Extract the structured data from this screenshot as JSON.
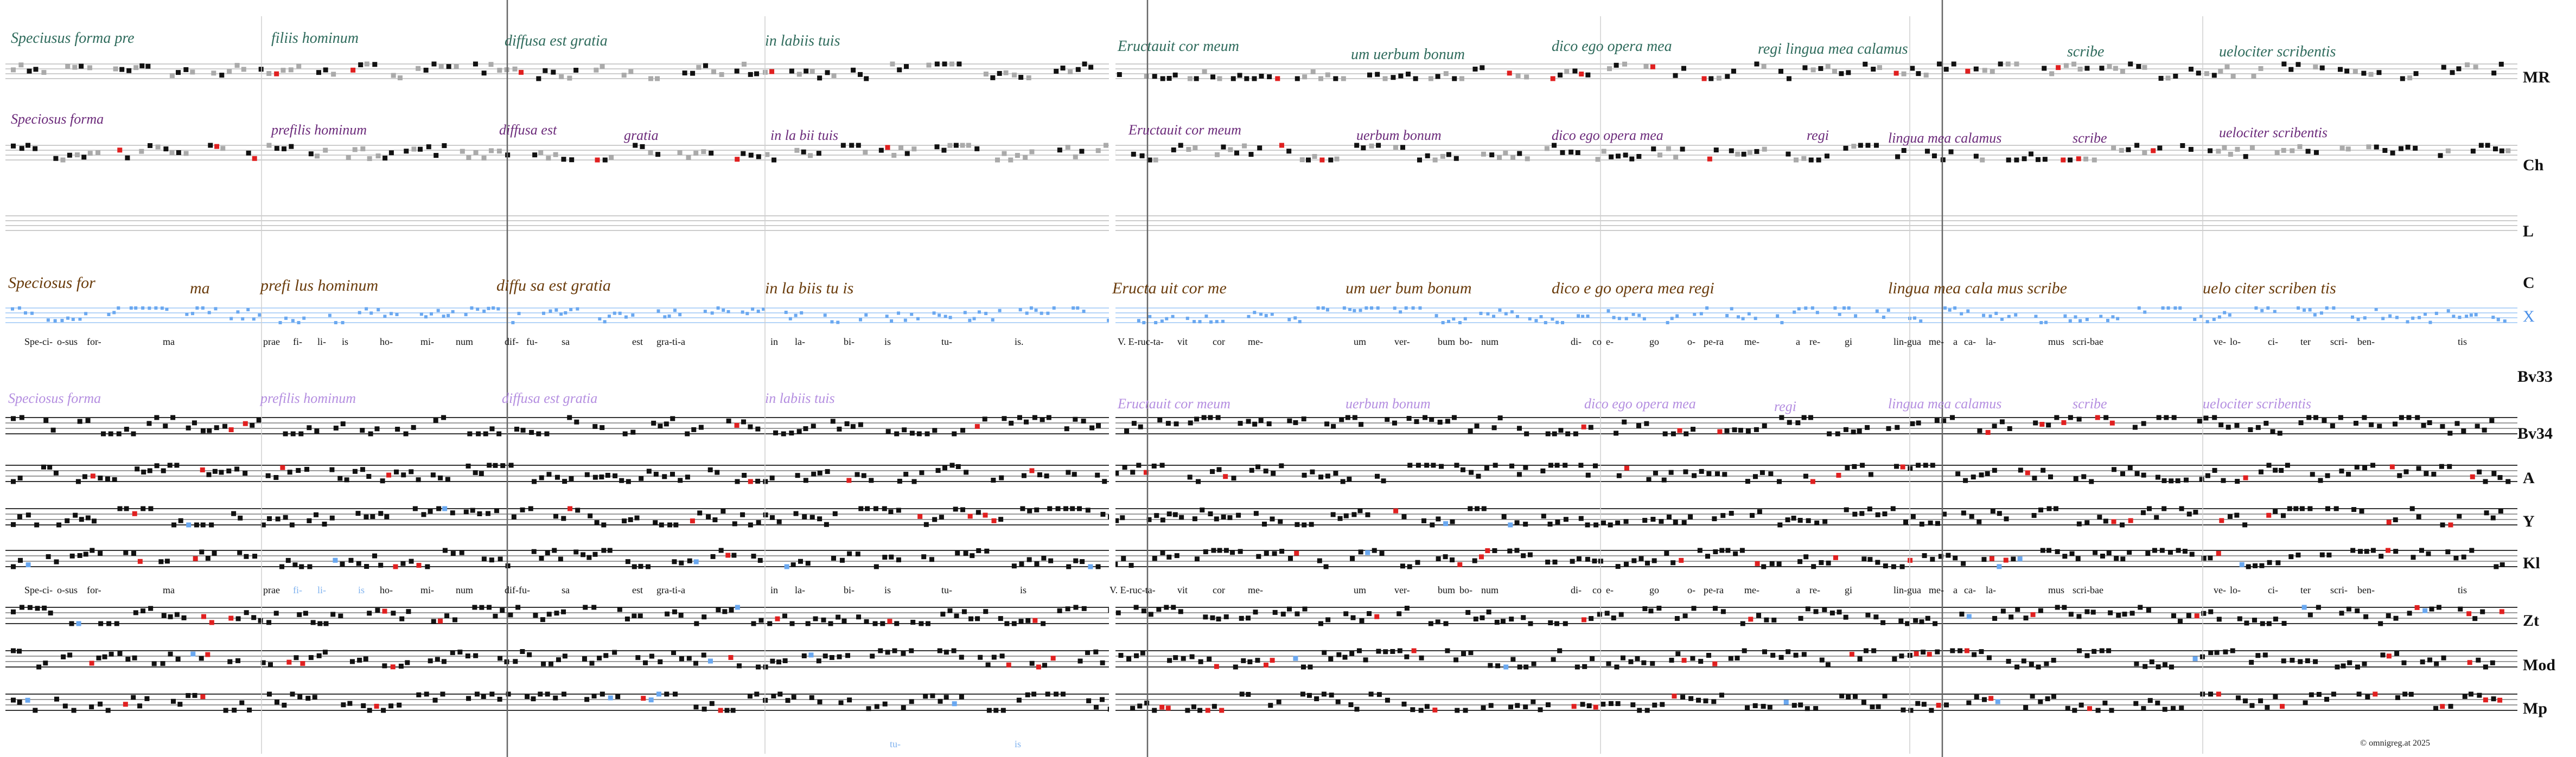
{
  "row_labels": [
    "MR",
    "Ch",
    "L",
    "C",
    "X",
    "Bv33",
    "Bv34",
    "A",
    "Y",
    "Kl",
    "Zt",
    "Mod",
    "Mp"
  ],
  "neume_text": {
    "MR": [
      "Speciusus forma pre",
      "filiis hominum",
      "diffusa est gratia",
      "in labiis tuis",
      "Eructauit cor meum",
      "um uerbum bonum",
      "dico ego opera mea",
      "regi lingua mea calamus",
      "scribe",
      "uelociter scribentis"
    ],
    "Ch": [
      "Speciosus forma",
      "prefilis hominum",
      "diffusa est",
      "gratia",
      "in la bii tuis",
      "Eructauit cor meum",
      "uerbum bonum",
      "dico ego opera mea",
      "regi",
      "lingua mea calamus",
      "scribe",
      "uelociter scribentis"
    ],
    "C": [
      "Speciosus for",
      "ma",
      "prefi lus hominum",
      "diffu sa est gratia",
      "in la biis tu is",
      "Eructa uit cor me",
      "um uer bum bonum",
      "dico e go opera mea regi",
      "lingua mea cala mus scribe",
      "uelo citer scriben tis"
    ],
    "Bv33": [
      "Speciosus forma",
      "prefilis hominum",
      "diffusa est gratia",
      "in labiis tuis",
      "Eructauit cor meum",
      "uerbum bonum",
      "dico ego opera mea",
      "regi",
      "lingua mea calamus",
      "scribe",
      "uelociter scribentis"
    ]
  },
  "lyrics": {
    "X": [
      "Spe-ci-",
      "o-sus",
      "for-",
      "ma",
      "prae",
      "fi-",
      "li-",
      "is",
      "ho-",
      "mi-",
      "num",
      "dif-",
      "fu-",
      "sa",
      "est",
      "gra-ti-a",
      "in",
      "la-",
      "bi-",
      "is",
      "tu-",
      "is.",
      "V. E-ruc-ta-",
      "vit",
      "cor",
      "me-",
      "um",
      "ver-",
      "bum",
      "bo-",
      "num",
      "di-",
      "co",
      "e-",
      "go",
      "o-",
      "pe-ra",
      "me-",
      "a",
      "re-",
      "gi",
      "lin-gua",
      "me-",
      "a",
      "ca-",
      "la-",
      "mus",
      "scri-bae",
      "ve-",
      "lo-",
      "ci-",
      "ter",
      "scri-",
      "ben-",
      "tis"
    ],
    "Kl": [
      "Spe-ci-",
      "o-sus",
      "for-",
      "ma",
      "prae",
      "fi-",
      "li-",
      "is",
      "ho-",
      "mi-",
      "num",
      "dif-fu-",
      "sa",
      "est",
      "gra-ti-a",
      "in",
      "la-",
      "bi-",
      "is",
      "tu-",
      "is",
      "V. E-ruc-ta-",
      "vit",
      "cor",
      "me-",
      "um",
      "ver-",
      "bum",
      "bo-",
      "num",
      "di-",
      "co",
      "e-",
      "go",
      "o-",
      "pe-ra",
      "me-",
      "a",
      "re-",
      "gi",
      "lin-gua",
      "me-",
      "a",
      "ca-",
      "la-",
      "mus",
      "scri-bae",
      "ve-",
      "lo-",
      "ci-",
      "ter",
      "scri-",
      "ben-",
      "tis"
    ],
    "Mp": [
      "tu-",
      "is"
    ]
  },
  "copyright": "© omnigreg.at   2025",
  "colors": {
    "staff": "#555555",
    "note": "#111111",
    "red": "#e02020",
    "blue": "#6aa8f0",
    "gray": "#aaaaaa",
    "green": "#2f6b5c",
    "purple": "#6b2a7a",
    "brown": "#6a3c0c",
    "lilac": "#b48ee0",
    "teal": "#3aa08a"
  }
}
